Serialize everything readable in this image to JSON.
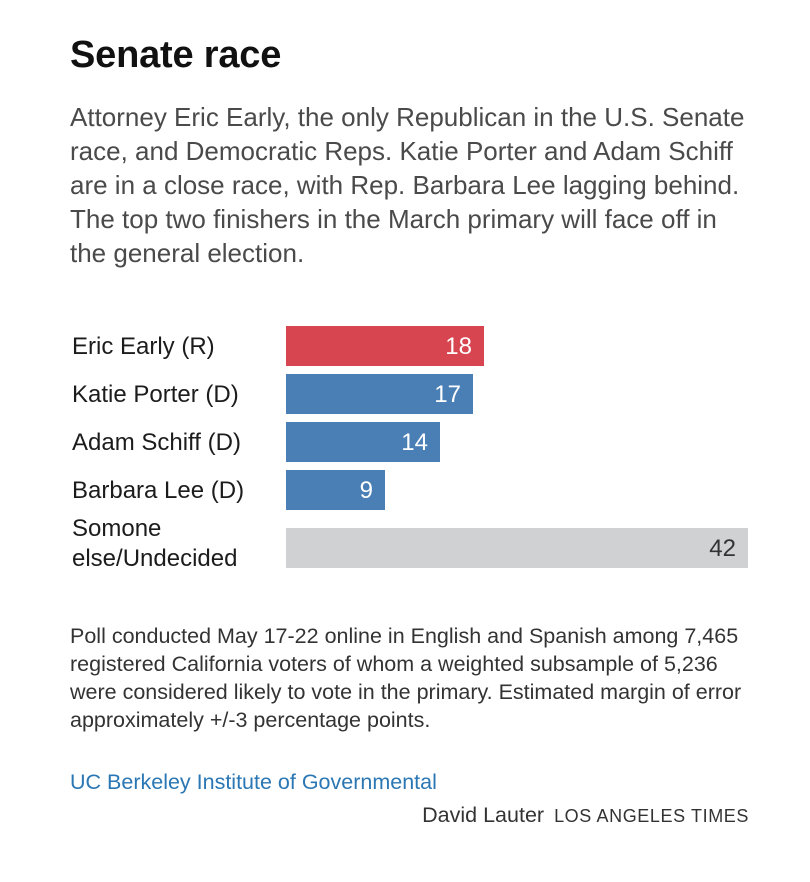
{
  "title": "Senate race",
  "subtitle": "Attorney Eric Early, the only Republican in the U.S. Senate race, and Democratic Reps. Katie Porter and Adam Schiff are in a close race, with Rep. Barbara Lee lagging behind. The top two finishers in the March primary will face off in the general election.",
  "chart_data": {
    "type": "bar",
    "orientation": "horizontal",
    "categories": [
      "Eric Early (R)",
      "Katie Porter (D)",
      "Adam Schiff (D)",
      "Barbara Lee (D)",
      "Somone else/Undecided"
    ],
    "values": [
      18,
      17,
      14,
      9,
      42
    ],
    "bar_colors": [
      "#d64550",
      "#4a7fb5",
      "#4a7fb5",
      "#4a7fb5",
      "#cfd1d2"
    ],
    "label_colors": [
      "#ffffff",
      "#ffffff",
      "#ffffff",
      "#ffffff",
      "#333333"
    ],
    "xlim": [
      0,
      42
    ],
    "data_labels": true,
    "grid": false,
    "legend": "none"
  },
  "note": "Poll conducted May 17-22 online in English and Spanish among 7,465 registered California voters of whom a weighted subsample of 5,236 were considered likely to vote in the primary. Estimated margin of error approximately +/-3 percentage points.",
  "source": "UC Berkeley Institute of Governmental",
  "credit": {
    "author": "David Lauter",
    "org": "LOS ANGELES TIMES"
  }
}
